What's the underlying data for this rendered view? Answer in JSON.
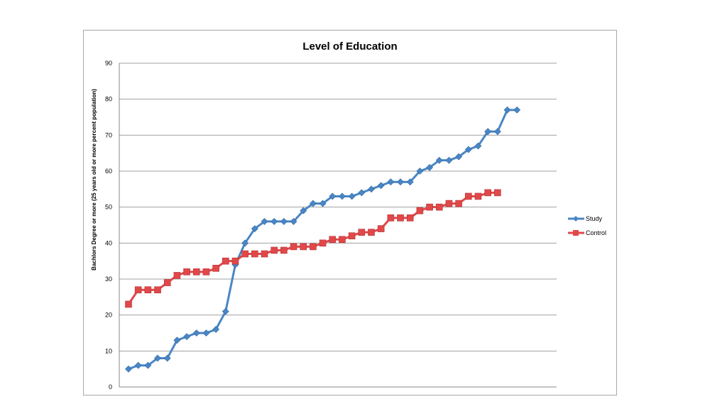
{
  "chart_data": {
    "type": "line",
    "title": "Level of Education",
    "xlabel": "",
    "ylabel": "Bachlors Degree or more (25 years old or more percent population)",
    "ylim": [
      0,
      90
    ],
    "yticks": [
      0,
      10,
      20,
      30,
      40,
      50,
      60,
      70,
      80,
      90
    ],
    "grid": true,
    "legend_position": "right",
    "series": [
      {
        "name": "Study",
        "color": "#4a86c5",
        "marker": "diamond",
        "values": [
          5,
          6,
          6,
          8,
          8,
          13,
          14,
          15,
          15,
          16,
          21,
          34,
          40,
          44,
          46,
          46,
          46,
          46,
          49,
          51,
          51,
          53,
          53,
          53,
          54,
          55,
          56,
          57,
          57,
          57,
          60,
          61,
          63,
          63,
          64,
          66,
          67,
          71,
          71,
          77,
          77
        ]
      },
      {
        "name": "Control",
        "color": "#e0484a",
        "marker": "square",
        "values": [
          23,
          27,
          27,
          27,
          29,
          31,
          32,
          32,
          32,
          33,
          35,
          35,
          37,
          37,
          37,
          38,
          38,
          39,
          39,
          39,
          40,
          41,
          41,
          42,
          43,
          43,
          44,
          47,
          47,
          47,
          49,
          50,
          50,
          51,
          51,
          53,
          53,
          54,
          54
        ]
      }
    ]
  }
}
